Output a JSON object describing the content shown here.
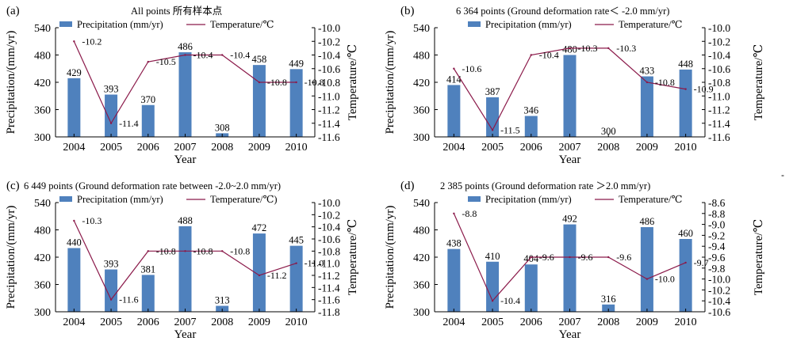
{
  "figure": {
    "stray_mark": "-"
  },
  "chart_data": [
    {
      "type": "bar",
      "panel_label": "(a)",
      "title": "All points 所有样本点",
      "categories": [
        "2004",
        "2005",
        "2006",
        "2007",
        "2008",
        "2009",
        "2010"
      ],
      "series": [
        {
          "name": "Precipitation (mm/yr)",
          "values": [
            429,
            393,
            370,
            486,
            308,
            458,
            449
          ],
          "labels": [
            "429",
            "393",
            "370",
            "486",
            "308",
            "458",
            "449"
          ],
          "color": "#4f81bd"
        },
        {
          "name": "Temperature/℃",
          "values": [
            -10.2,
            -11.4,
            -10.5,
            -10.4,
            -10.4,
            -10.8,
            -10.8
          ],
          "labels": [
            "-10.2",
            "-11.4",
            "-10.5",
            "-10.4",
            "-10.4",
            "-10.8",
            "-10.8"
          ],
          "color": "#8b1a4a",
          "axis": "right"
        }
      ],
      "xlabel": "Year",
      "ylabel": "Precipitation/(mm/yr)",
      "y2label": "Temperature/℃",
      "ylim": [
        300,
        540
      ],
      "yticks": [
        300,
        360,
        420,
        480,
        540
      ],
      "y2lim": [
        -11.6,
        -10.0
      ],
      "y2ticks": [
        "-10.0",
        "-10.2",
        "-10.4",
        "-10.6",
        "-10.8",
        "-11.0",
        "-11.2",
        "-11.4",
        "-11.6"
      ],
      "legend": "top",
      "grid": false
    },
    {
      "type": "bar",
      "panel_label": "(b)",
      "title": "6 364 points (Ground deformation rate＜ -2.0 mm/yr)",
      "categories": [
        "2004",
        "2005",
        "2006",
        "2007",
        "2008",
        "2009",
        "2010"
      ],
      "series": [
        {
          "name": "Precipitation (mm/yr)",
          "values": [
            414,
            387,
            346,
            480,
            300,
            433,
            448
          ],
          "labels": [
            "414",
            "387",
            "346",
            "480",
            "300",
            "433",
            "448"
          ],
          "color": "#4f81bd"
        },
        {
          "name": "Temperature/℃",
          "values": [
            -10.6,
            -11.5,
            -10.4,
            -10.3,
            -10.3,
            -10.8,
            -10.9
          ],
          "labels": [
            "-10.6",
            "-11.5",
            "-10.4",
            "-10.3",
            "-10.3",
            "-10.8",
            "-10.9"
          ],
          "color": "#8b1a4a",
          "axis": "right"
        }
      ],
      "xlabel": "Year",
      "ylabel": "Precipitation/(mm/yr)",
      "y2label": "Temperature/℃",
      "ylim": [
        300,
        540
      ],
      "yticks": [
        300,
        360,
        420,
        480,
        540
      ],
      "y2lim": [
        -11.6,
        -10.0
      ],
      "y2ticks": [
        "-10.0",
        "-10.2",
        "-10.4",
        "-10.6",
        "-10.8",
        "-11.0",
        "-11.2",
        "-11.4",
        "-11.6"
      ],
      "legend": "top",
      "grid": false
    },
    {
      "type": "bar",
      "panel_label": "(c)",
      "title": "6 449 points (Ground deformation rate between -2.0~2.0 mm/yr)",
      "categories": [
        "2004",
        "2005",
        "2006",
        "2007",
        "2008",
        "2009",
        "2010"
      ],
      "series": [
        {
          "name": "Precipitation (mm/yr)",
          "values": [
            440,
            393,
            381,
            488,
            313,
            472,
            445
          ],
          "labels": [
            "440",
            "393",
            "381",
            "488",
            "313",
            "472",
            "445"
          ],
          "color": "#4f81bd"
        },
        {
          "name": "Temperature/℃)",
          "values": [
            -10.3,
            -11.6,
            -10.8,
            -10.8,
            -10.8,
            -11.2,
            -11.0
          ],
          "labels": [
            "-10.3",
            "-11.6",
            "-10.8",
            "-10.8",
            "-10.8",
            "-11.2",
            "-11.0"
          ],
          "color": "#8b1a4a",
          "axis": "right"
        }
      ],
      "xlabel": "Year",
      "ylabel": "Precipitation/(mm/yr)",
      "y2label": "Temperature/℃",
      "ylim": [
        300,
        540
      ],
      "yticks": [
        300,
        360,
        420,
        480,
        540
      ],
      "y2lim": [
        -11.8,
        -10.0
      ],
      "y2ticks": [
        "-10.0",
        "-10.2",
        "-10.4",
        "-10.6",
        "-10.8",
        "-11.0",
        "-11.2",
        "-11.4",
        "-11.6",
        "-11.8"
      ],
      "legend": "top",
      "grid": false
    },
    {
      "type": "bar",
      "panel_label": "(d)",
      "title": "2 385 points (Ground deformation rate ＞2.0 mm/yr)",
      "categories": [
        "2004",
        "2005",
        "2006",
        "2007",
        "2008",
        "2009",
        "2010"
      ],
      "series": [
        {
          "name": "Precipitation (mm/yr)",
          "values": [
            438,
            410,
            404,
            492,
            316,
            486,
            460
          ],
          "labels": [
            "438",
            "410",
            "404",
            "492",
            "316",
            "486",
            "460"
          ],
          "color": "#4f81bd"
        },
        {
          "name": "Temperature/℃",
          "values": [
            -8.8,
            -10.4,
            -9.6,
            -9.6,
            -9.6,
            -10.0,
            -9.7
          ],
          "labels": [
            "-8.8",
            "-10.4",
            "-9.6",
            "-9.6",
            "-9.6",
            "-10.0",
            "-9.7"
          ],
          "color": "#8b1a4a",
          "axis": "right"
        }
      ],
      "xlabel": "Year",
      "ylabel": "Precipitation/(mm/yr)",
      "y2label": "Temperature/℃",
      "ylim": [
        300,
        540
      ],
      "yticks": [
        300,
        360,
        420,
        480,
        540
      ],
      "y2lim": [
        -10.6,
        -8.6
      ],
      "y2ticks": [
        "-8.6",
        "-8.8",
        "-9.0",
        "-9.2",
        "-9.4",
        "-9.6",
        "-9.8",
        "-10.0",
        "-10.2",
        "-10.4",
        "-10.6"
      ],
      "legend": "top",
      "grid": false
    }
  ]
}
